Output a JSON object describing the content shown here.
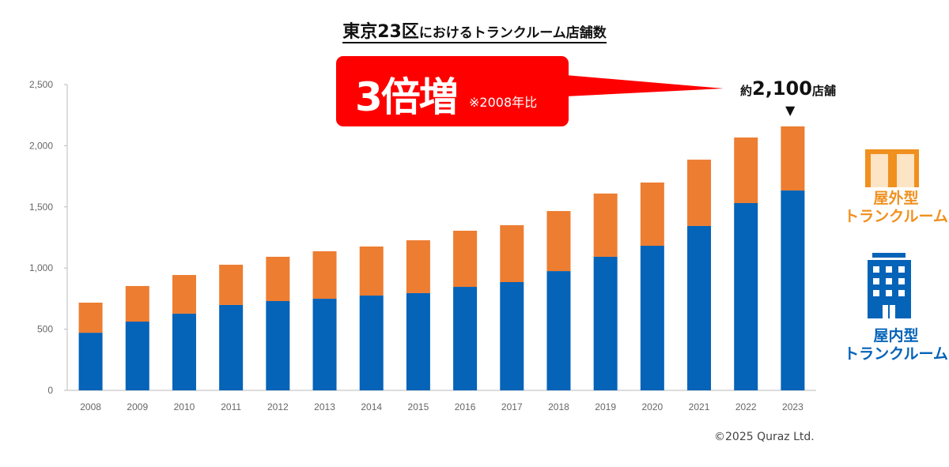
{
  "chart_data": {
    "type": "bar",
    "stacked": true,
    "title_main": "東京23区",
    "title_rest": "におけるトランクルーム店舗数",
    "categories": [
      "2008",
      "2009",
      "2010",
      "2011",
      "2012",
      "2013",
      "2014",
      "2015",
      "2016",
      "2017",
      "2018",
      "2019",
      "2020",
      "2021",
      "2022",
      "2023"
    ],
    "series": [
      {
        "name": "屋内型トランクルーム",
        "color": "#0563B8",
        "values": [
          471,
          562,
          627,
          698,
          730,
          749,
          775,
          795,
          846,
          885,
          975,
          1092,
          1182,
          1344,
          1531,
          1634
        ]
      },
      {
        "name": "屋外型トランクルーム",
        "color": "#ED7D31",
        "values": [
          246,
          291,
          316,
          329,
          362,
          388,
          401,
          432,
          459,
          465,
          491,
          517,
          517,
          542,
          536,
          524
        ]
      }
    ],
    "ylim": [
      0,
      2500
    ],
    "yticks": [
      "0",
      "500",
      "1,000",
      "1,500",
      "2,000",
      "2,500"
    ],
    "ytick_values": [
      0,
      500,
      1000,
      1500,
      2000,
      2500
    ],
    "legend": {
      "outdoor_line1": "屋外型",
      "outdoor_line2": "トランクルーム",
      "indoor_line1": "屋内型",
      "indoor_line2": "トランクルーム"
    },
    "annotations": {
      "callout_main": "3倍増",
      "callout_sub": "※2008年比",
      "total_prefix": "約",
      "total_num": "2,100",
      "total_suffix": "店舗",
      "arrow": "▼"
    },
    "copyright": "©2025 Quraz Ltd."
  }
}
